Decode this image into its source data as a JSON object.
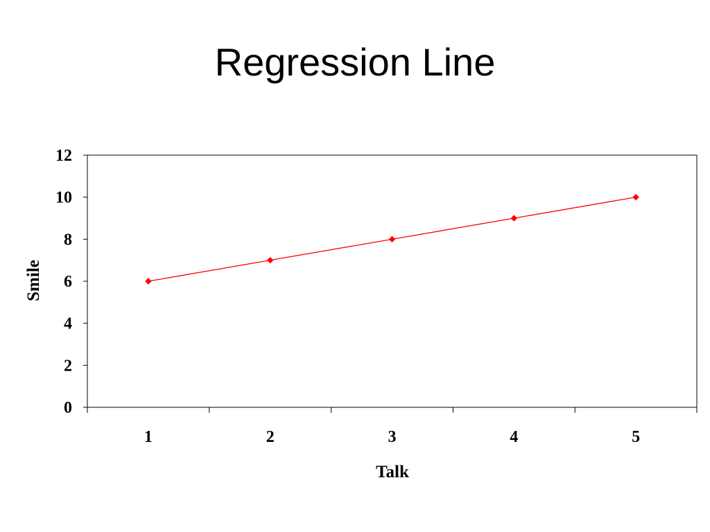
{
  "title": "Regression Line",
  "chart_data": {
    "type": "line",
    "x": [
      1,
      2,
      3,
      4,
      5
    ],
    "series": [
      {
        "values": [
          6,
          7,
          8,
          9,
          10
        ],
        "color": "#ff0000"
      }
    ],
    "xlabel": "Talk",
    "ylabel": "Smile",
    "xticks": [
      "1",
      "2",
      "3",
      "4",
      "5"
    ],
    "yticks": [
      0,
      2,
      4,
      6,
      8,
      10,
      12
    ],
    "ylim": [
      0,
      12
    ],
    "grid": false,
    "legend": "none"
  }
}
